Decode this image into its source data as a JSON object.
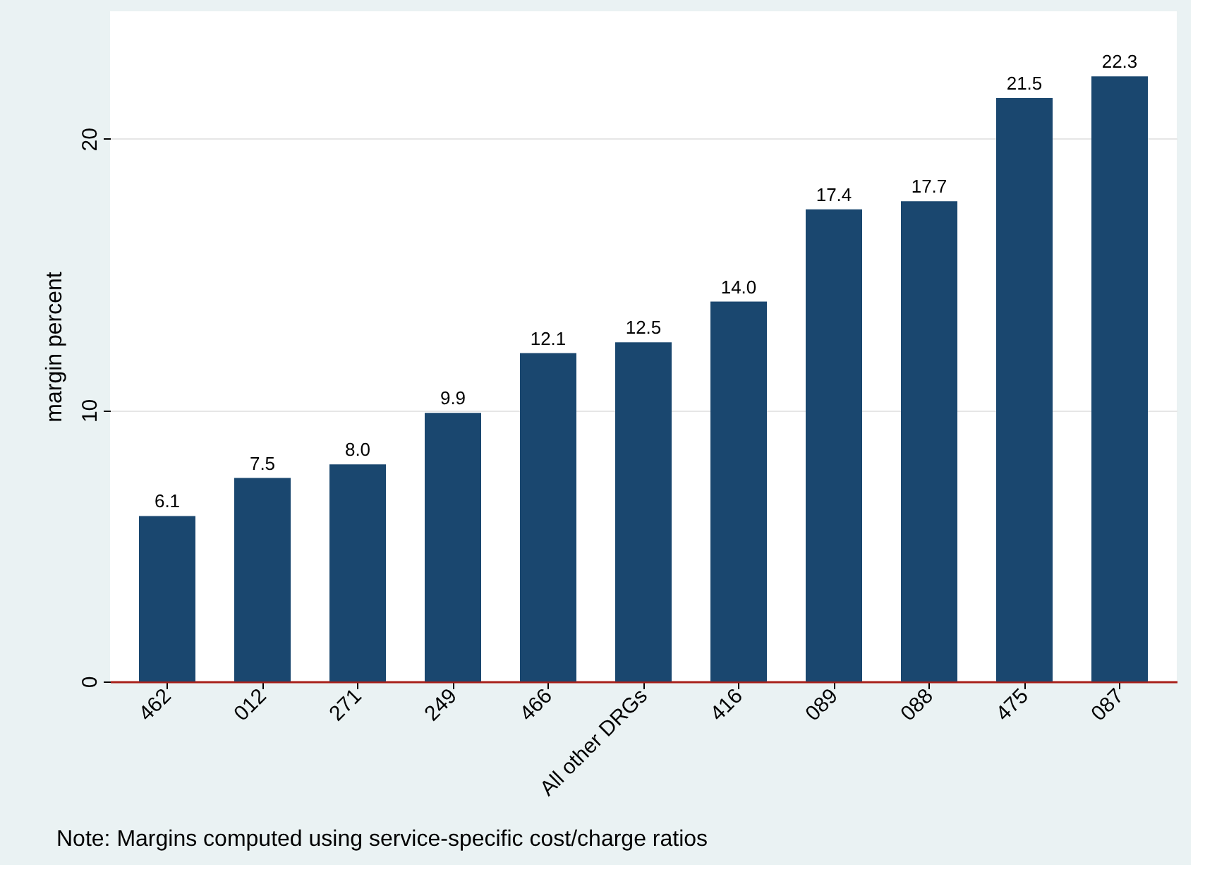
{
  "chart_data": {
    "type": "bar",
    "ylabel": "margin percent",
    "categories": [
      "462",
      "012",
      "271",
      "249",
      "466",
      "All other DRGs",
      "416",
      "089",
      "088",
      "475",
      "087"
    ],
    "values": [
      6.1,
      7.5,
      8.0,
      9.9,
      12.1,
      12.5,
      14.0,
      17.4,
      17.7,
      21.5,
      22.3
    ],
    "value_labels": [
      "6.1",
      "7.5",
      "8.0",
      "9.9",
      "12.1",
      "12.5",
      "14.0",
      "17.4",
      "17.7",
      "21.5",
      "22.3"
    ],
    "color": "#1a476f",
    "ylim": [
      0,
      24.7
    ],
    "yticks": [
      0,
      10,
      20
    ],
    "grid": "y",
    "annotations": [
      "Note: Margins computed using service-specific cost/charge ratios"
    ]
  }
}
